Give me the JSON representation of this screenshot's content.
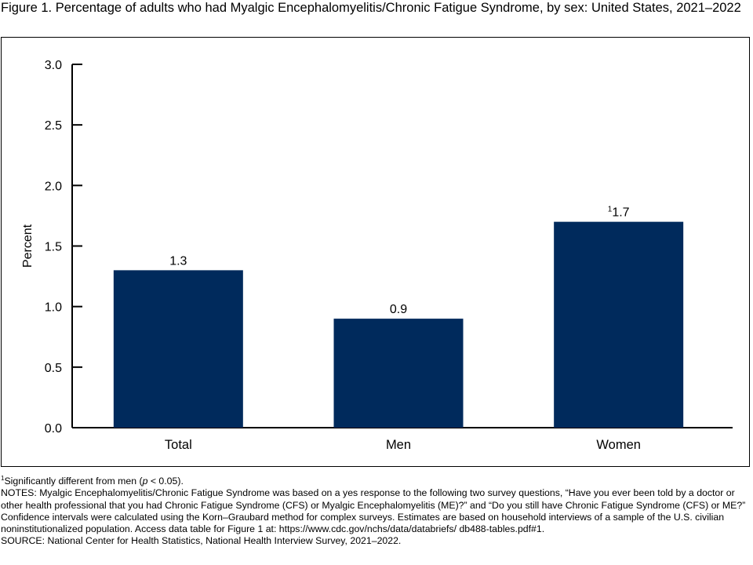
{
  "figure": {
    "title": "Figure 1. Percentage of adults who had Myalgic Encephalomyelitis/Chronic Fatigue Syndrome, by sex: United States, 2021–2022"
  },
  "chart_data": {
    "type": "bar",
    "categories": [
      "Total",
      "Men",
      "Women"
    ],
    "values": [
      1.3,
      0.9,
      1.7
    ],
    "value_labels": [
      "1.3",
      "0.9",
      "1.7"
    ],
    "value_label_superscripts": [
      "",
      "",
      "1"
    ],
    "xlabel": "",
    "ylabel": "Percent",
    "ylim": [
      0,
      3.0
    ],
    "yticks": [
      "0.0",
      "0.5",
      "1.0",
      "1.5",
      "2.0",
      "2.5",
      "3.0"
    ],
    "bar_color": "#002a5c",
    "grid": false,
    "legend": "none"
  },
  "footnotes": {
    "significance_mark": "1",
    "significance_text": "Significantly different from men (",
    "significance_p": "p",
    "significance_rest": " < 0.05).",
    "notes": "NOTES: Myalgic Encephalomyelitis/Chronic Fatigue Syndrome was based on a yes response to the following two survey questions, “Have you ever been told by a doctor or other health professional that you had Chronic Fatigue Syndrome (CFS) or Myalgic Encephalomyelitis (ME)?” and “Do you still have Chronic Fatigue Syndrome (CFS) or ME?” Confidence intervals were calculated using the Korn–Graubard method for complex surveys. Estimates are based on household interviews of a sample of the U.S. civilian noninstitutionalized population. Access data table for Figure 1 at: https://www.cdc.gov/nchs/data/databriefs/ db488-tables.pdf#1.",
    "source": "SOURCE: National Center for Health Statistics, National Health Interview Survey, 2021–2022."
  }
}
